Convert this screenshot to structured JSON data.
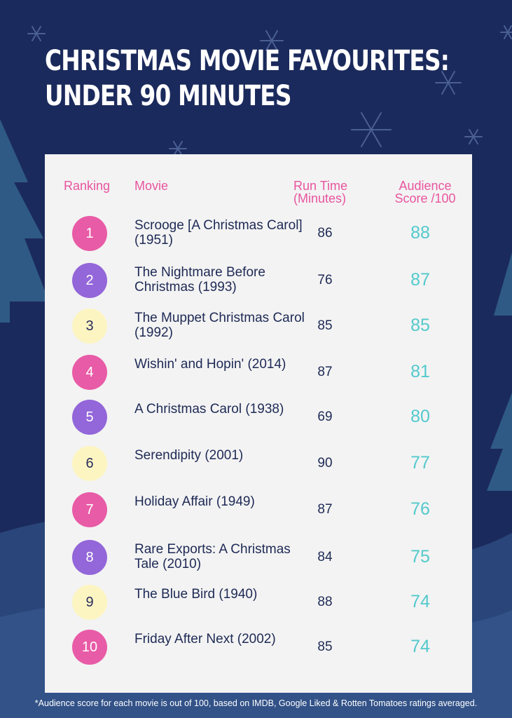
{
  "title": {
    "line1": "CHRISTMAS MOVIE FAVOURITES:",
    "line2": "UNDER 90 MINUTES"
  },
  "headers": {
    "ranking": "Ranking",
    "movie": "Movie",
    "run_time": "Run Time (Minutes)",
    "score": "Audience Score /100"
  },
  "rows": [
    {
      "rank": "1",
      "badge": "pink",
      "movie": "Scrooge [A Christmas Carol] (1951)",
      "run": "86",
      "score": "88"
    },
    {
      "rank": "2",
      "badge": "purple",
      "movie": "The Nightmare Before Christmas (1993)",
      "run": "76",
      "score": "87"
    },
    {
      "rank": "3",
      "badge": "yellow",
      "movie": "The Muppet Christmas Carol (1992)",
      "run": "85",
      "score": "85"
    },
    {
      "rank": "4",
      "badge": "pink",
      "movie": "Wishin' and Hopin' (2014)",
      "run": "87",
      "score": "81"
    },
    {
      "rank": "5",
      "badge": "purple",
      "movie": "A Christmas Carol (1938)",
      "run": "69",
      "score": "80"
    },
    {
      "rank": "6",
      "badge": "yellow",
      "movie": "Serendipity (2001)",
      "run": "90",
      "score": "77"
    },
    {
      "rank": "7",
      "badge": "pink",
      "movie": "Holiday Affair (1949)",
      "run": "87",
      "score": "76"
    },
    {
      "rank": "8",
      "badge": "purple",
      "movie": "Rare Exports: A Christmas Tale (2010)",
      "run": "84",
      "score": "75"
    },
    {
      "rank": "9",
      "badge": "yellow",
      "movie": "The Blue Bird (1940)",
      "run": "88",
      "score": "74"
    },
    {
      "rank": "10",
      "badge": "pink",
      "movie": "Friday After Next (2002)",
      "run": "85",
      "score": "74"
    }
  ],
  "footnote": "*Audience score for each movie is out of 100, based on IMDB, Google Liked & Rotten Tomatoes ratings averaged.",
  "colors": {
    "background": "#1b2a5c",
    "header_pink": "#e8559f",
    "score_teal": "#53c9cc",
    "badge_pink": "#e85ba6",
    "badge_purple": "#9366d9",
    "badge_yellow": "#fcf5c2"
  }
}
